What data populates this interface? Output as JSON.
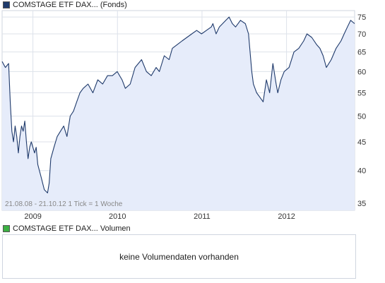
{
  "legend": {
    "price_label": "COMSTAGE ETF DAX... (Fonds)",
    "price_color": "#1f3a6b",
    "volume_label": "COMSTAGE ETF DAX... Volumen",
    "volume_color": "#3cb043"
  },
  "volume_panel": {
    "message": "keine Volumendaten vorhanden"
  },
  "chart_data": {
    "type": "area",
    "range_label": "21.08.08 - 21.10.12   1 Tick = 1 Woche",
    "x_ticks": [
      "2009",
      "2010",
      "2011",
      "2012"
    ],
    "y_ticks": [
      35,
      40,
      45,
      50,
      55,
      60,
      65,
      70,
      75
    ],
    "ylim": [
      34,
      77
    ],
    "y_scale": "log",
    "xlim": [
      "2008-08-21",
      "2012-10-21"
    ],
    "grid": true,
    "line_color": "#1f3a6b",
    "fill_color": "#e6ecfa",
    "series": [
      {
        "x": [
          "2008-08-21",
          "2008-09-04",
          "2008-09-18",
          "2008-09-25",
          "2008-10-02",
          "2008-10-09",
          "2008-10-16",
          "2008-10-23",
          "2008-10-30",
          "2008-11-06",
          "2008-11-13",
          "2008-11-20",
          "2008-11-27",
          "2008-12-04",
          "2008-12-11",
          "2008-12-18",
          "2008-12-25",
          "2009-01-08",
          "2009-01-15",
          "2009-01-22",
          "2009-02-05",
          "2009-02-19",
          "2009-03-05",
          "2009-03-12",
          "2009-03-19",
          "2009-04-02",
          "2009-04-16",
          "2009-04-30",
          "2009-05-14",
          "2009-05-28",
          "2009-06-11",
          "2009-06-25",
          "2009-07-09",
          "2009-07-23",
          "2009-08-06",
          "2009-08-27",
          "2009-09-17",
          "2009-10-08",
          "2009-10-29",
          "2009-11-19",
          "2009-12-10",
          "2009-12-31",
          "2010-01-21",
          "2010-02-04",
          "2010-02-25",
          "2010-03-18",
          "2010-04-15",
          "2010-05-06",
          "2010-05-27",
          "2010-06-17",
          "2010-07-01",
          "2010-07-22",
          "2010-08-12",
          "2010-08-26",
          "2010-09-16",
          "2010-10-07",
          "2010-10-28",
          "2010-11-18",
          "2010-12-09",
          "2010-12-30",
          "2011-01-20",
          "2011-02-10",
          "2011-02-17",
          "2011-03-03",
          "2011-03-17",
          "2011-03-31",
          "2011-04-14",
          "2011-04-28",
          "2011-05-12",
          "2011-05-26",
          "2011-06-16",
          "2011-07-07",
          "2011-07-21",
          "2011-08-04",
          "2011-08-11",
          "2011-08-25",
          "2011-09-08",
          "2011-09-22",
          "2011-10-06",
          "2011-10-20",
          "2011-11-03",
          "2011-11-17",
          "2011-11-24",
          "2011-12-08",
          "2011-12-22",
          "2012-01-12",
          "2012-02-02",
          "2012-02-23",
          "2012-03-15",
          "2012-03-29",
          "2012-04-19",
          "2012-05-10",
          "2012-05-24",
          "2012-06-07",
          "2012-06-21",
          "2012-07-12",
          "2012-08-02",
          "2012-08-23",
          "2012-09-06",
          "2012-09-20",
          "2012-10-04",
          "2012-10-21"
        ],
        "values": [
          62.5,
          61,
          62,
          53,
          47,
          45,
          48,
          46,
          43,
          46,
          48,
          47,
          49,
          45,
          42,
          44,
          45,
          43,
          44,
          41,
          39,
          37,
          36.5,
          38,
          42,
          44,
          46,
          47,
          48,
          46,
          50,
          51,
          53,
          55,
          56,
          57,
          55,
          58,
          57,
          59,
          59,
          60,
          58,
          56,
          57,
          61,
          63,
          60,
          59,
          61,
          60,
          64,
          63,
          66,
          67,
          68,
          69,
          70,
          71,
          70,
          71,
          72,
          73,
          70,
          72,
          73,
          74,
          75,
          73,
          72,
          74,
          73,
          70,
          60,
          57,
          55,
          54,
          53,
          58,
          55,
          62,
          57,
          55,
          58,
          60,
          61,
          65,
          66,
          68,
          70,
          69,
          67,
          66,
          64,
          61,
          63,
          66,
          68,
          70,
          72,
          74,
          73
        ]
      }
    ]
  }
}
